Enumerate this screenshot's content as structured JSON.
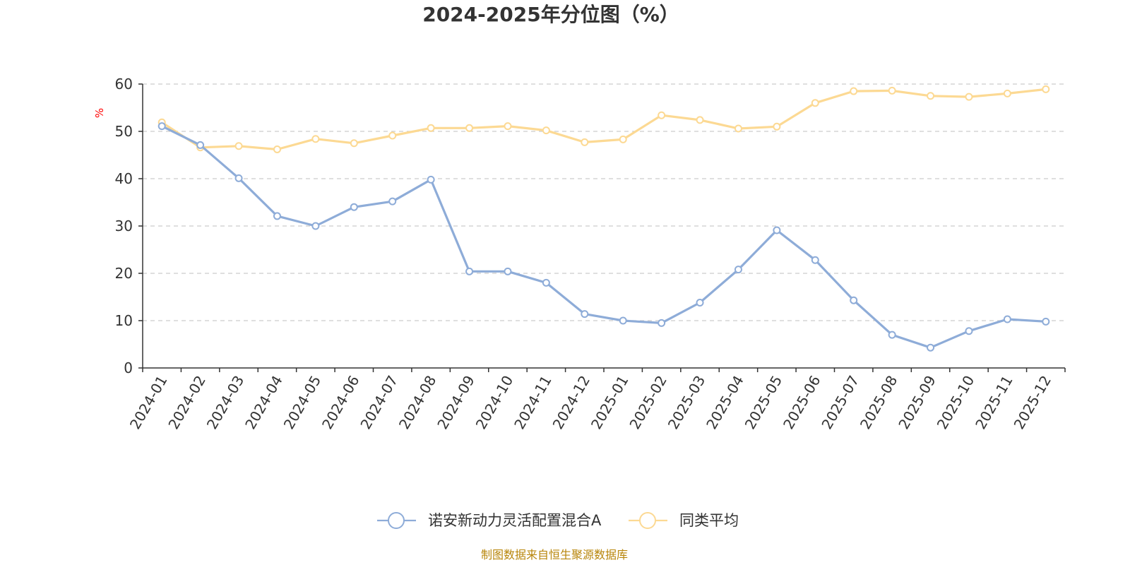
{
  "chart_data": {
    "type": "line",
    "title": "2024-2025年分位图（%）",
    "ylabel": "%",
    "xlabel": "",
    "ylim": [
      0,
      60
    ],
    "yticks": [
      0,
      10,
      20,
      30,
      40,
      50,
      60
    ],
    "grid": true,
    "legend_position": "bottom-center",
    "categories": [
      "2024-01",
      "2024-02",
      "2024-03",
      "2024-04",
      "2024-05",
      "2024-06",
      "2024-07",
      "2024-08",
      "2024-09",
      "2024-10",
      "2024-11",
      "2024-12",
      "2025-01",
      "2025-02",
      "2025-03",
      "2025-04",
      "2025-05",
      "2025-06",
      "2025-07",
      "2025-08",
      "2025-09",
      "2025-10",
      "2025-11",
      "2025-12"
    ],
    "series": [
      {
        "name": "诺安新动力灵活配置混合A",
        "color": "#8eacd8",
        "values": [
          51.1,
          47.1,
          40.1,
          32.1,
          30.0,
          34.0,
          35.2,
          39.8,
          20.4,
          20.4,
          18.0,
          11.4,
          10.0,
          9.5,
          13.8,
          20.8,
          29.1,
          22.8,
          14.3,
          7.0,
          4.3,
          7.8,
          10.3,
          9.8
        ]
      },
      {
        "name": "同类平均",
        "color": "#fcd993",
        "values": [
          51.9,
          46.6,
          46.9,
          46.2,
          48.4,
          47.5,
          49.1,
          50.7,
          50.7,
          51.1,
          50.2,
          47.7,
          48.3,
          53.4,
          52.4,
          50.6,
          51.0,
          56.0,
          58.5,
          58.6,
          57.5,
          57.3,
          58.0,
          58.9
        ]
      }
    ]
  },
  "footer": {
    "source": "制图数据来自恒生聚源数据库"
  }
}
